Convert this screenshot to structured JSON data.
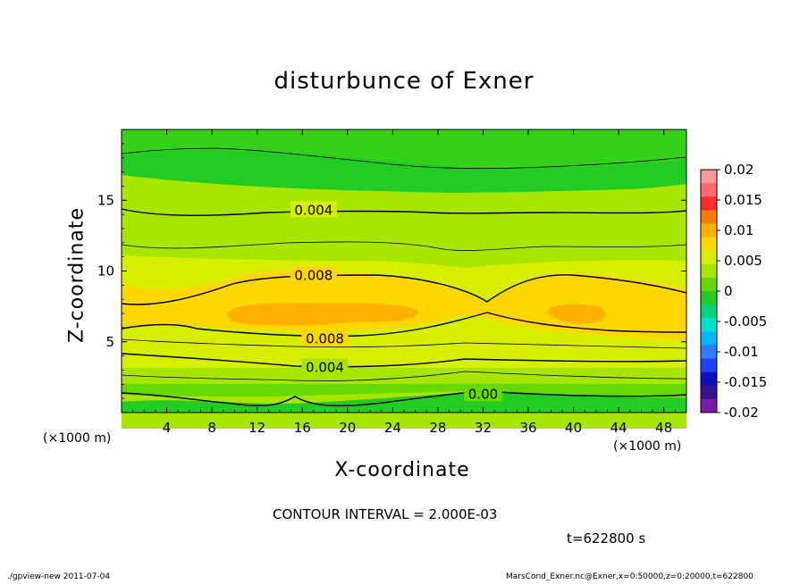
{
  "chart_data": {
    "type": "contour",
    "title": "disturbunce of Exner",
    "xlabel": "X-coordinate",
    "ylabel": "Z-coordinate",
    "x_unit_label": "(×1000 m)",
    "x_range": [
      0,
      50
    ],
    "y_range": [
      0,
      20
    ],
    "x_ticks": [
      4,
      8,
      12,
      16,
      20,
      24,
      28,
      32,
      36,
      40,
      44,
      48
    ],
    "y_ticks": [
      5,
      10,
      15
    ],
    "contour_interval_text": "CONTOUR INTERVAL = 2.000E-03",
    "time_text": "t=622800 s",
    "contour_labels": [
      {
        "text": "0.004",
        "x": 17,
        "z": 14.3
      },
      {
        "text": "0.008",
        "x": 17,
        "z": 9.7
      },
      {
        "text": "0.008",
        "x": 18,
        "z": 5.2
      },
      {
        "text": "0.004",
        "x": 18,
        "z": 3.2
      },
      {
        "text": "0.00",
        "x": 32,
        "z": 1.3
      }
    ],
    "colorbar": {
      "ticks": [
        "0.02",
        "0.015",
        "0.01",
        "0.005",
        "0",
        "-0.005",
        "-0.01",
        "-0.015",
        "-0.02"
      ],
      "colors": [
        "#ff9999",
        "#ff6b6b",
        "#ff2a2a",
        "#ff7a00",
        "#ffb000",
        "#ffd700",
        "#d8ee00",
        "#a8e600",
        "#66d900",
        "#22cc22",
        "#00d47a",
        "#00e0d0",
        "#00b8ff",
        "#2d7bff",
        "#2040ff",
        "#1010c0",
        "#3a1090",
        "#7a1aa8"
      ]
    }
  },
  "footer": {
    "left": "./gpview-new  2011-07-04",
    "right": "MarsCond_Exner.nc@Exner,x=0:50000,z=0:20000,t=622800"
  }
}
